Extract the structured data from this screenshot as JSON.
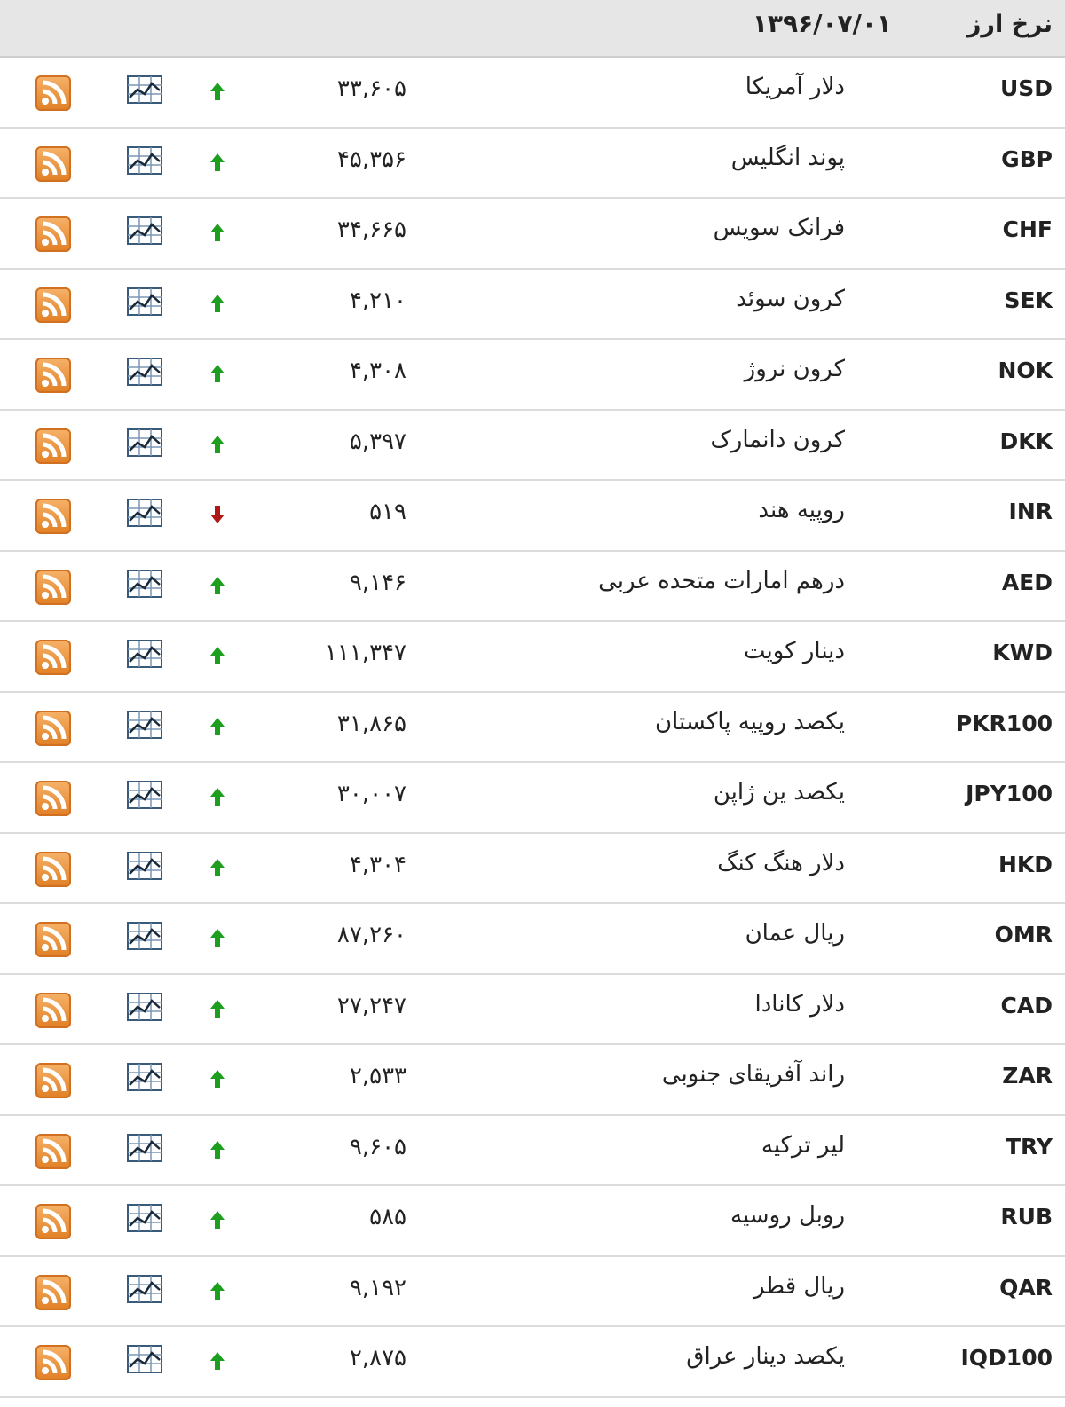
{
  "header": {
    "title": "نرخ ارز",
    "date": "۱۳۹۶/۰۷/۰۱"
  },
  "colors": {
    "up": "#1e9e1e",
    "down": "#b01818",
    "rss": "#e8892f"
  },
  "rows": [
    {
      "code": "USD",
      "name": "دلار آمریکا",
      "value": "۳۳,۶۰۵",
      "trend": "up"
    },
    {
      "code": "GBP",
      "name": "پوند انگلیس",
      "value": "۴۵,۳۵۶",
      "trend": "up"
    },
    {
      "code": "CHF",
      "name": "فرانک سویس",
      "value": "۳۴,۶۶۵",
      "trend": "up"
    },
    {
      "code": "SEK",
      "name": "کرون سوئد",
      "value": "۴,۲۱۰",
      "trend": "up"
    },
    {
      "code": "NOK",
      "name": "کرون نروژ",
      "value": "۴,۳۰۸",
      "trend": "up"
    },
    {
      "code": "DKK",
      "name": "کرون دانمارک",
      "value": "۵,۳۹۷",
      "trend": "up"
    },
    {
      "code": "INR",
      "name": "روپیه هند",
      "value": "۵۱۹",
      "trend": "down"
    },
    {
      "code": "AED",
      "name": "درهم امارات متحده عربی",
      "value": "۹,۱۴۶",
      "trend": "up"
    },
    {
      "code": "KWD",
      "name": "دینار کویت",
      "value": "۱۱۱,۳۴۷",
      "trend": "up"
    },
    {
      "code": "PKR100",
      "name": "یکصد روپیه پاکستان",
      "value": "۳۱,۸۶۵",
      "trend": "up"
    },
    {
      "code": "JPY100",
      "name": "یکصد ین ژاپن",
      "value": "۳۰,۰۰۷",
      "trend": "up"
    },
    {
      "code": "HKD",
      "name": "دلار هنگ کنگ",
      "value": "۴,۳۰۴",
      "trend": "up"
    },
    {
      "code": "OMR",
      "name": "ریال عمان",
      "value": "۸۷,۲۶۰",
      "trend": "up"
    },
    {
      "code": "CAD",
      "name": "دلار کانادا",
      "value": "۲۷,۲۴۷",
      "trend": "up"
    },
    {
      "code": "ZAR",
      "name": "راند آفریقای جنوبی",
      "value": "۲,۵۳۳",
      "trend": "up"
    },
    {
      "code": "TRY",
      "name": "لیر ترکیه",
      "value": "۹,۶۰۵",
      "trend": "up"
    },
    {
      "code": "RUB",
      "name": "روبل روسیه",
      "value": "۵۸۵",
      "trend": "up"
    },
    {
      "code": "QAR",
      "name": "ریال قطر",
      "value": "۹,۱۹۲",
      "trend": "up"
    },
    {
      "code": "IQD100",
      "name": "یکصد دینار عراق",
      "value": "۲,۸۷۵",
      "trend": "up"
    }
  ]
}
